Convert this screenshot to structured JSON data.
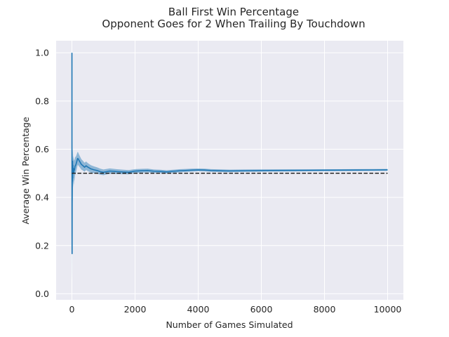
{
  "chart_data": {
    "type": "line",
    "title_lines": [
      "Ball First Win Percentage",
      "Opponent Goes for 2 When Trailing By Touchdown"
    ],
    "xlabel": "Number of Games Simulated",
    "ylabel": "Average Win Percentage",
    "xlim": [
      -500,
      10500
    ],
    "ylim": [
      -0.025,
      1.05
    ],
    "xticks": [
      0,
      2000,
      4000,
      6000,
      8000,
      10000
    ],
    "xtick_labels": [
      "0",
      "2000",
      "4000",
      "6000",
      "8000",
      "10000"
    ],
    "yticks": [
      0.0,
      0.2,
      0.4,
      0.6,
      0.8,
      1.0
    ],
    "ytick_labels": [
      "0.0",
      "0.2",
      "0.4",
      "0.6",
      "0.8",
      "1.0"
    ],
    "grid": true,
    "background_color": "#eaeaf2",
    "series": [
      {
        "color": "#1f77b4",
        "style": "solid",
        "has_confidence_band": true,
        "x": [
          1,
          2,
          3,
          4,
          5,
          6,
          8,
          10,
          12,
          15,
          20,
          25,
          30,
          40,
          50,
          60,
          70,
          80,
          100,
          120,
          150,
          180,
          200,
          220,
          250,
          300,
          350,
          400,
          450,
          500,
          600,
          700,
          800,
          900,
          1000,
          1200,
          1400,
          1600,
          1800,
          2000,
          2200,
          2400,
          2600,
          2800,
          3000,
          3200,
          3400,
          3600,
          3800,
          4000,
          4200,
          4400,
          4600,
          4800,
          5000,
          5500,
          6000,
          6500,
          7000,
          7500,
          8000,
          8500,
          9000,
          9500,
          10000
        ],
        "y": [
          1.0,
          0.5,
          0.3333,
          0.25,
          0.2,
          0.1667,
          0.375,
          0.4,
          0.5,
          0.4667,
          0.55,
          0.48,
          0.5333,
          0.5,
          0.52,
          0.5,
          0.5143,
          0.5125,
          0.53,
          0.5333,
          0.5467,
          0.5611,
          0.56,
          0.5545,
          0.548,
          0.5367,
          0.5314,
          0.525,
          0.5311,
          0.526,
          0.5183,
          0.5143,
          0.5113,
          0.5067,
          0.504,
          0.5092,
          0.5071,
          0.5056,
          0.5044,
          0.509,
          0.5105,
          0.5113,
          0.5085,
          0.5075,
          0.5057,
          0.5081,
          0.5103,
          0.5117,
          0.5129,
          0.514,
          0.5133,
          0.5116,
          0.5109,
          0.5102,
          0.5098,
          0.5107,
          0.5113,
          0.5117,
          0.512,
          0.5123,
          0.5126,
          0.5129,
          0.5133,
          0.5136,
          0.5142
        ]
      },
      {
        "color": "#262626",
        "style": "dashed",
        "x": [
          0,
          10000
        ],
        "y": [
          0.5,
          0.5
        ]
      }
    ]
  }
}
